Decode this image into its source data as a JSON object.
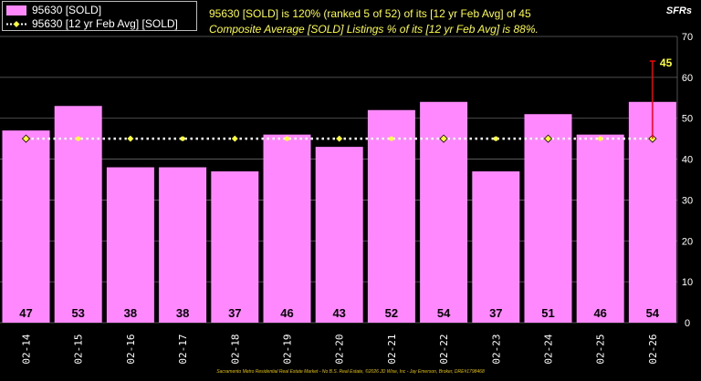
{
  "legend": {
    "bar_label": "95630 [SOLD]",
    "line_label": "95630 [12 yr Feb Avg] [SOLD]"
  },
  "headline": {
    "line1": "95630 [SOLD] is 120% (ranked 5 of 52) of its [12 yr Feb Avg] of 45",
    "line2": "Composite Average [SOLD] Listings % of its [12 yr Feb Avg] is 88%."
  },
  "y_axis_title": "SFRs",
  "footer": "Sacramento Metro Residential Real Estate Market - No B.S. Real Estate, ©2026 JD Wise, Inc - Jay Emerson, Broker, DRE#1798468",
  "colors": {
    "background": "#000000",
    "bar": "#ff88ff",
    "avg_line": "#ffffff",
    "avg_marker": "#ffff33",
    "highlight_line": "#ff0000",
    "highlight_label": "#ffff33",
    "grid": "#666666"
  },
  "chart_data": {
    "type": "bar",
    "categories": [
      "02-14",
      "02-15",
      "02-16",
      "02-17",
      "02-18",
      "02-19",
      "02-20",
      "02-21",
      "02-22",
      "02-23",
      "02-24",
      "02-25",
      "02-26"
    ],
    "series": [
      {
        "name": "95630 [SOLD]",
        "type": "bar",
        "values": [
          47,
          53,
          38,
          38,
          37,
          46,
          43,
          52,
          54,
          37,
          51,
          46,
          54
        ]
      },
      {
        "name": "95630 [12 yr Feb Avg] [SOLD]",
        "type": "line",
        "values": [
          45,
          45,
          45,
          45,
          45,
          45,
          45,
          45,
          45,
          45,
          45,
          45,
          45
        ]
      }
    ],
    "highlight": {
      "label": "45",
      "value": 45
    },
    "ylim": [
      0,
      70
    ],
    "yticks": [
      0,
      10,
      20,
      30,
      40,
      50,
      60,
      70
    ],
    "grid": true,
    "legend_position": "top-left",
    "y_axis_side": "right"
  }
}
